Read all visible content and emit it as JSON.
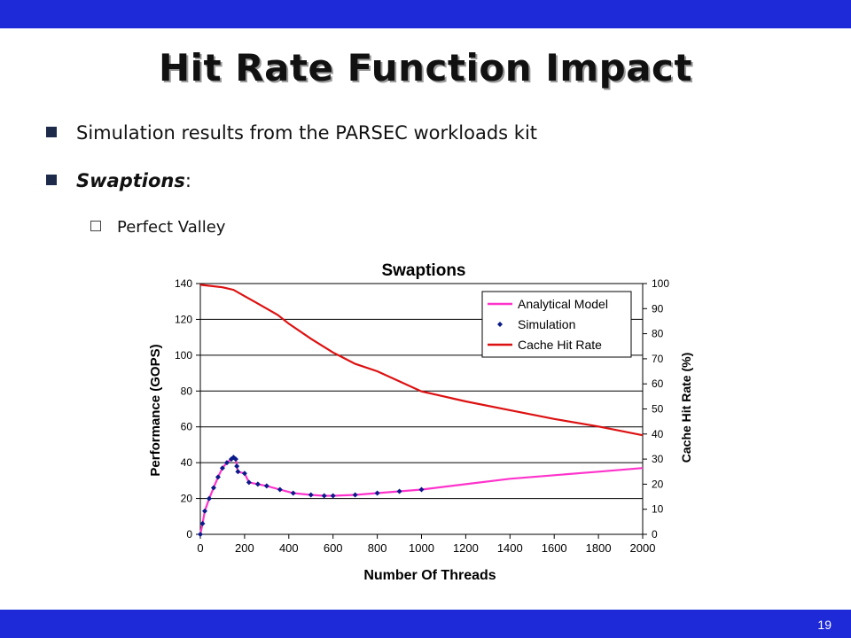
{
  "slide": {
    "title": "Hit Rate Function Impact",
    "bullets": [
      {
        "text": "Simulation results from the PARSEC workloads kit"
      },
      {
        "text_em": "Swaptions",
        "text_suffix": ":"
      },
      {
        "text": "Perfect Valley"
      }
    ],
    "page_number": "19"
  },
  "colors": {
    "bar": "#1e2ad8",
    "analytical": "#ff33cc",
    "simulation": "#0a1a8a",
    "hit_rate": "#dd1111"
  },
  "chart_data": {
    "type": "line",
    "title": "Swaptions",
    "xlabel": "Number Of Threads",
    "ylabel_left": "Performance (GOPS)",
    "ylabel_right": "Cache Hit Rate (%)",
    "xlim": [
      0,
      2000
    ],
    "ylim_left": [
      0,
      140
    ],
    "ylim_right": [
      0,
      100
    ],
    "x_ticks": [
      "0",
      "200",
      "400",
      "600",
      "800",
      "1000",
      "1200",
      "1400",
      "1600",
      "1800",
      "2000"
    ],
    "y_left_ticks": [
      "0",
      "20",
      "40",
      "60",
      "80",
      "100",
      "120",
      "140"
    ],
    "y_right_ticks": [
      "0",
      "10",
      "20",
      "30",
      "40",
      "50",
      "60",
      "70",
      "80",
      "90",
      "100"
    ],
    "grid": "horizontal",
    "legend_position": "top-right",
    "series": [
      {
        "name": "Analytical Model",
        "axis": "left",
        "style": "line",
        "x": [
          0,
          10,
          20,
          40,
          60,
          80,
          100,
          120,
          140,
          150,
          160,
          165,
          170,
          200,
          220,
          260,
          300,
          360,
          420,
          500,
          560,
          600,
          700,
          800,
          900,
          1000,
          1200,
          1400,
          1600,
          1800,
          2000
        ],
        "y": [
          0,
          6,
          13,
          20,
          26,
          32,
          37,
          40,
          42,
          43,
          42,
          38,
          35,
          34,
          29,
          28,
          27,
          25,
          23,
          22,
          21.5,
          21.5,
          22,
          23,
          24,
          25,
          28,
          31,
          33,
          35,
          37
        ]
      },
      {
        "name": "Simulation",
        "axis": "left",
        "style": "marker",
        "x": [
          0,
          10,
          20,
          40,
          60,
          80,
          100,
          120,
          140,
          150,
          160,
          165,
          170,
          200,
          220,
          260,
          300,
          360,
          420,
          500,
          560,
          600,
          700,
          800,
          900,
          1000
        ],
        "y": [
          0,
          6,
          13,
          20,
          26,
          32,
          37,
          40,
          42,
          43,
          42,
          38,
          35,
          34,
          29,
          28,
          27,
          25,
          23,
          22,
          21.5,
          21.5,
          22,
          23,
          24,
          25
        ]
      },
      {
        "name": "Cache Hit Rate",
        "axis": "right",
        "style": "line",
        "x": [
          0,
          100,
          150,
          200,
          250,
          300,
          350,
          400,
          500,
          600,
          700,
          800,
          900,
          1000,
          1200,
          1400,
          1600,
          1800,
          2000
        ],
        "y": [
          99.5,
          98.5,
          97.5,
          95,
          92.5,
          90,
          87.5,
          84,
          78,
          72.5,
          68,
          65,
          61,
          57,
          53,
          49.5,
          46,
          43,
          39.5
        ]
      }
    ]
  }
}
